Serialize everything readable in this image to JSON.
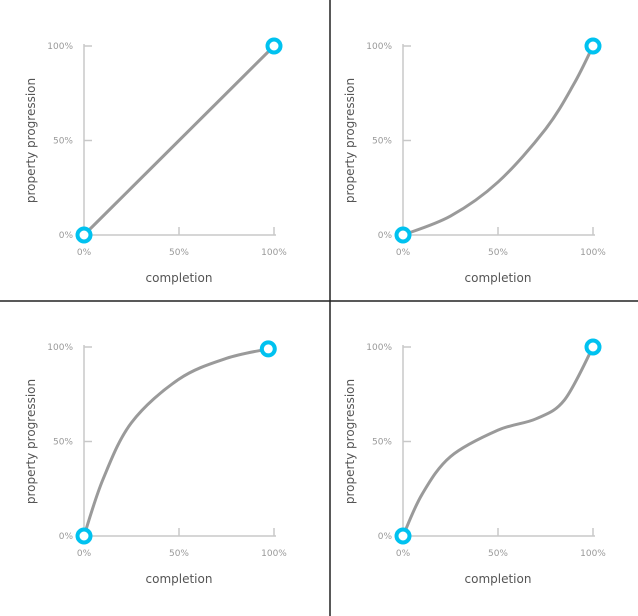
{
  "colors": {
    "curve": "#9a9a9a",
    "axis": "#c8c8c8",
    "endpoint": "#00c2f0",
    "divider": "#222222",
    "tick_text": "#999999",
    "label_text": "#555555"
  },
  "chart_data": [
    {
      "type": "line",
      "title": "",
      "xlabel": "completion",
      "ylabel": "property progression",
      "x_ticks": [
        "0%",
        "50%",
        "100%"
      ],
      "y_ticks": [
        "0%",
        "50%",
        "100%"
      ],
      "xlim": [
        0,
        1
      ],
      "ylim": [
        0,
        1
      ],
      "grid": false,
      "series": [
        {
          "x": [
            0,
            0.25,
            0.5,
            0.75,
            1.0
          ],
          "y": [
            0,
            0.25,
            0.5,
            0.75,
            1.0
          ]
        }
      ]
    },
    {
      "type": "line",
      "title": "",
      "xlabel": "completion",
      "ylabel": "property progression",
      "x_ticks": [
        "0%",
        "50%",
        "100%"
      ],
      "y_ticks": [
        "0%",
        "50%",
        "100%"
      ],
      "xlim": [
        0,
        1
      ],
      "ylim": [
        0,
        1
      ],
      "grid": false,
      "series": [
        {
          "x": [
            0,
            0.25,
            0.5,
            0.75,
            0.9,
            1.0
          ],
          "y": [
            0,
            0.1,
            0.28,
            0.56,
            0.8,
            1.0
          ]
        }
      ]
    },
    {
      "type": "line",
      "title": "",
      "xlabel": "completion",
      "ylabel": "property progression",
      "x_ticks": [
        "0%",
        "50%",
        "100%"
      ],
      "y_ticks": [
        "0%",
        "50%",
        "100%"
      ],
      "xlim": [
        0,
        1
      ],
      "ylim": [
        0,
        1
      ],
      "grid": false,
      "series": [
        {
          "x": [
            0,
            0.1,
            0.25,
            0.5,
            0.75,
            0.97
          ],
          "y": [
            0,
            0.3,
            0.6,
            0.83,
            0.94,
            0.99
          ]
        }
      ]
    },
    {
      "type": "line",
      "title": "",
      "xlabel": "completion",
      "ylabel": "property progression",
      "x_ticks": [
        "0%",
        "50%",
        "100%"
      ],
      "y_ticks": [
        "0%",
        "50%",
        "100%"
      ],
      "xlim": [
        0,
        1
      ],
      "ylim": [
        0,
        1
      ],
      "grid": false,
      "series": [
        {
          "x": [
            0,
            0.1,
            0.25,
            0.5,
            0.7,
            0.85,
            1.0
          ],
          "y": [
            0,
            0.22,
            0.42,
            0.56,
            0.62,
            0.72,
            1.0
          ]
        }
      ]
    }
  ]
}
